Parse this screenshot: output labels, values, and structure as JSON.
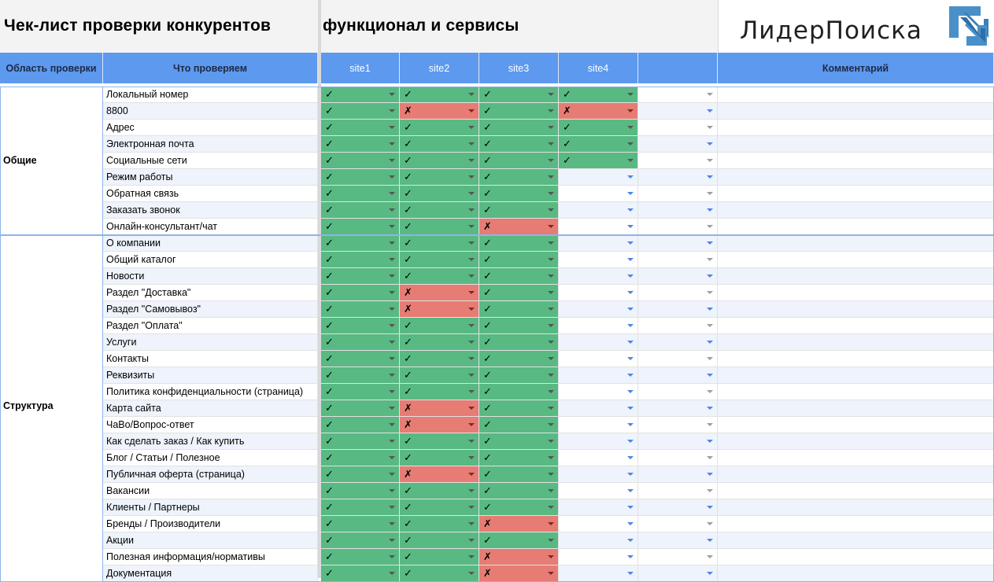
{
  "title": "Чек-лист проверки конкурентов",
  "subtitle": "функционал и сервисы",
  "logo_text": "ЛидерПоиска",
  "headers": {
    "area": "Область проверки",
    "item": "Что проверяем",
    "sites": [
      "site1",
      "site2",
      "site3",
      "site4",
      ""
    ],
    "comment": "Комментарий"
  },
  "symbols": {
    "yes": "✓",
    "no": "✗"
  },
  "colors": {
    "yes": "#58b983",
    "no": "#e67c73",
    "header": "#5c99ef"
  },
  "sections": [
    {
      "label": "Общие",
      "start": 0,
      "count": 9
    },
    {
      "label": "Структура",
      "start": 9,
      "count": 21
    }
  ],
  "rows": [
    {
      "item": "Локальный номер",
      "s": [
        "yes",
        "yes",
        "yes",
        "yes",
        ""
      ]
    },
    {
      "item": "8800",
      "s": [
        "yes",
        "no",
        "yes",
        "no",
        ""
      ]
    },
    {
      "item": "Адрес",
      "s": [
        "yes",
        "yes",
        "yes",
        "yes",
        ""
      ]
    },
    {
      "item": "Электронная почта",
      "s": [
        "yes",
        "yes",
        "yes",
        "yes",
        ""
      ]
    },
    {
      "item": "Социальные сети",
      "s": [
        "yes",
        "yes",
        "yes",
        "yes",
        ""
      ]
    },
    {
      "item": "Режим работы",
      "s": [
        "yes",
        "yes",
        "yes",
        "",
        ""
      ]
    },
    {
      "item": "Обратная связь",
      "s": [
        "yes",
        "yes",
        "yes",
        "",
        ""
      ]
    },
    {
      "item": "Заказать звонок",
      "s": [
        "yes",
        "yes",
        "yes",
        "",
        ""
      ]
    },
    {
      "item": "Онлайн-консультант/чат",
      "s": [
        "yes",
        "yes",
        "no",
        "",
        ""
      ]
    },
    {
      "item": "О компании",
      "s": [
        "yes",
        "yes",
        "yes",
        "",
        ""
      ]
    },
    {
      "item": "Общий каталог",
      "s": [
        "yes",
        "yes",
        "yes",
        "",
        ""
      ]
    },
    {
      "item": "Новости",
      "s": [
        "yes",
        "yes",
        "yes",
        "",
        ""
      ]
    },
    {
      "item": "Раздел \"Доставка\"",
      "s": [
        "yes",
        "no",
        "yes",
        "",
        ""
      ]
    },
    {
      "item": "Раздел \"Самовывоз\"",
      "s": [
        "yes",
        "no",
        "yes",
        "",
        ""
      ]
    },
    {
      "item": "Раздел \"Оплата\"",
      "s": [
        "yes",
        "yes",
        "yes",
        "",
        ""
      ]
    },
    {
      "item": "Услуги",
      "s": [
        "yes",
        "yes",
        "yes",
        "",
        ""
      ]
    },
    {
      "item": "Контакты",
      "s": [
        "yes",
        "yes",
        "yes",
        "",
        ""
      ]
    },
    {
      "item": "Реквизиты",
      "s": [
        "yes",
        "yes",
        "yes",
        "",
        ""
      ]
    },
    {
      "item": "Политика конфиденциальности (страница)",
      "s": [
        "yes",
        "yes",
        "yes",
        "",
        ""
      ]
    },
    {
      "item": "Карта сайта",
      "s": [
        "yes",
        "no",
        "yes",
        "",
        ""
      ]
    },
    {
      "item": "ЧаВо/Вопрос-ответ",
      "s": [
        "yes",
        "no",
        "yes",
        "",
        ""
      ]
    },
    {
      "item": "Как сделать заказ / Как купить",
      "s": [
        "yes",
        "yes",
        "yes",
        "",
        ""
      ]
    },
    {
      "item": "Блог / Статьи / Полезное",
      "s": [
        "yes",
        "yes",
        "yes",
        "",
        ""
      ]
    },
    {
      "item": "Публичная оферта (страница)",
      "s": [
        "yes",
        "no",
        "yes",
        "",
        ""
      ]
    },
    {
      "item": "Вакансии",
      "s": [
        "yes",
        "yes",
        "yes",
        "",
        ""
      ]
    },
    {
      "item": "Клиенты / Партнеры",
      "s": [
        "yes",
        "yes",
        "yes",
        "",
        ""
      ]
    },
    {
      "item": "Бренды / Производители",
      "s": [
        "yes",
        "yes",
        "no",
        "",
        ""
      ]
    },
    {
      "item": "Акции",
      "s": [
        "yes",
        "yes",
        "yes",
        "",
        ""
      ]
    },
    {
      "item": "Полезная информация/нормативы",
      "s": [
        "yes",
        "yes",
        "no",
        "",
        ""
      ]
    },
    {
      "item": "Документация",
      "s": [
        "yes",
        "yes",
        "no",
        "",
        ""
      ]
    }
  ]
}
